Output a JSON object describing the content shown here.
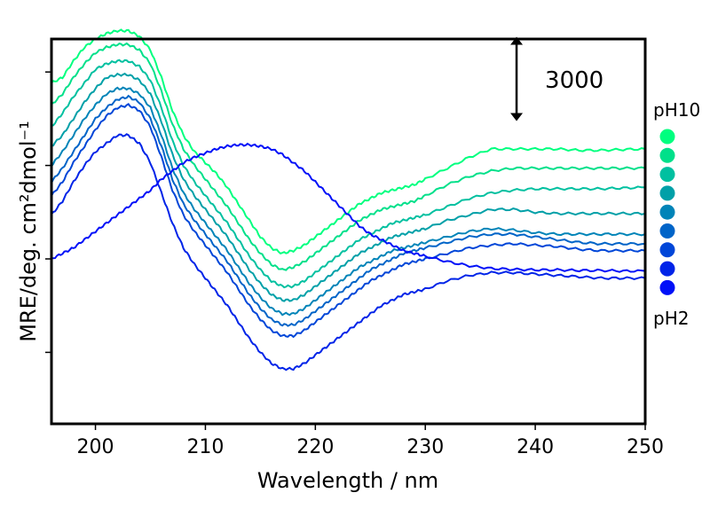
{
  "chart_data": {
    "type": "line",
    "xlabel": "Wavelength / nm",
    "ylabel": "MRE/deg. cm²dmol⁻¹",
    "xlim": [
      196,
      250
    ],
    "ylim": [
      -12600,
      1400
    ],
    "x_ticks": [
      200,
      210,
      220,
      230,
      240,
      250
    ],
    "y_ticks": [
      -10000,
      -6600,
      -3200,
      200
    ],
    "y_tick_labels_shown": false,
    "grid": false,
    "scale_bar": {
      "label": "3000",
      "value": 3000,
      "x": 238.3
    },
    "ph_label_top": "pH10",
    "ph_label_bottom": "pH2",
    "legend_colors": [
      "#00ff7f",
      "#00e08a",
      "#00c0a0",
      "#00a0a8",
      "#0084b8",
      "#0064c8",
      "#0046d8",
      "#0024e8",
      "#0010f8"
    ],
    "x_grid": [
      196,
      197,
      198,
      199,
      200,
      201,
      202,
      203,
      204,
      205,
      206,
      207,
      208,
      209,
      210,
      211,
      212,
      213,
      214,
      215,
      216,
      217,
      218,
      219,
      220,
      221,
      222,
      223,
      224,
      225,
      226,
      227,
      228,
      229,
      230,
      232,
      234,
      236,
      238,
      240,
      242,
      244,
      246,
      248,
      250
    ],
    "series": [
      {
        "color": "#00ff7f",
        "values": [
          -200,
          0,
          600,
          1100,
          1400,
          1600,
          1700,
          1700,
          1500,
          1000,
          0,
          -1200,
          -2100,
          -2700,
          -3100,
          -3500,
          -4000,
          -4600,
          -5200,
          -5800,
          -6200,
          -6400,
          -6300,
          -6100,
          -5800,
          -5500,
          -5200,
          -4900,
          -4600,
          -4400,
          -4200,
          -4100,
          -4000,
          -3900,
          -3700,
          -3300,
          -2900,
          -2600,
          -2600,
          -2600,
          -2600,
          -2650,
          -2650,
          -2620,
          -2600
        ]
      },
      {
        "color": "#00e08a",
        "values": [
          -1000,
          -600,
          0,
          500,
          900,
          1100,
          1200,
          1200,
          1000,
          500,
          -500,
          -1700,
          -2600,
          -3200,
          -3700,
          -4200,
          -4700,
          -5300,
          -5900,
          -6400,
          -6800,
          -7000,
          -6900,
          -6700,
          -6400,
          -6100,
          -5800,
          -5500,
          -5200,
          -5000,
          -4800,
          -4700,
          -4600,
          -4500,
          -4300,
          -3900,
          -3600,
          -3400,
          -3300,
          -3300,
          -3300,
          -3300,
          -3300,
          -3300,
          -3300
        ]
      },
      {
        "color": "#00c0a0",
        "values": [
          -1800,
          -1300,
          -700,
          -200,
          300,
          500,
          600,
          600,
          400,
          -100,
          -1100,
          -2300,
          -3200,
          -3800,
          -4300,
          -4800,
          -5300,
          -5900,
          -6500,
          -7000,
          -7400,
          -7600,
          -7600,
          -7400,
          -7100,
          -6800,
          -6500,
          -6200,
          -5900,
          -5700,
          -5500,
          -5300,
          -5200,
          -5100,
          -5000,
          -4700,
          -4400,
          -4200,
          -4100,
          -4050,
          -4050,
          -4050,
          -4050,
          -4020,
          -4000
        ]
      },
      {
        "color": "#00a0a8",
        "values": [
          -2500,
          -2100,
          -1500,
          -900,
          -400,
          0,
          100,
          100,
          -100,
          -600,
          -1600,
          -2800,
          -3700,
          -4300,
          -4800,
          -5300,
          -5800,
          -6400,
          -7000,
          -7500,
          -7900,
          -8100,
          -8100,
          -7900,
          -7600,
          -7300,
          -7000,
          -6700,
          -6400,
          -6200,
          -6000,
          -5800,
          -5700,
          -5600,
          -5500,
          -5200,
          -5000,
          -4800,
          -4800,
          -4900,
          -4950,
          -4950,
          -4950,
          -4950,
          -4950
        ]
      },
      {
        "color": "#0084b8",
        "values": [
          -3200,
          -2700,
          -2100,
          -1500,
          -1000,
          -600,
          -400,
          -400,
          -600,
          -1100,
          -2100,
          -3300,
          -4200,
          -4800,
          -5300,
          -5800,
          -6300,
          -6900,
          -7500,
          -8000,
          -8400,
          -8600,
          -8600,
          -8400,
          -8100,
          -7800,
          -7500,
          -7200,
          -6900,
          -6700,
          -6500,
          -6300,
          -6200,
          -6100,
          -6000,
          -5800,
          -5600,
          -5500,
          -5550,
          -5650,
          -5700,
          -5700,
          -5700,
          -5700,
          -5700
        ]
      },
      {
        "color": "#0064c8",
        "values": [
          -3800,
          -3300,
          -2700,
          -2100,
          -1500,
          -1100,
          -800,
          -700,
          -900,
          -1500,
          -2500,
          -3700,
          -4600,
          -5200,
          -5700,
          -6200,
          -6700,
          -7300,
          -7900,
          -8400,
          -8800,
          -9000,
          -9000,
          -8800,
          -8500,
          -8200,
          -7900,
          -7600,
          -7300,
          -7000,
          -6800,
          -6600,
          -6400,
          -6300,
          -6200,
          -6000,
          -5800,
          -5700,
          -5700,
          -5800,
          -5900,
          -6000,
          -6050,
          -6050,
          -6050
        ]
      },
      {
        "color": "#0046d8",
        "values": [
          -4300,
          -3800,
          -3100,
          -2500,
          -1900,
          -1400,
          -1100,
          -1000,
          -1200,
          -1800,
          -2900,
          -4100,
          -5000,
          -5600,
          -6100,
          -6600,
          -7100,
          -7700,
          -8300,
          -8800,
          -9200,
          -9400,
          -9400,
          -9200,
          -8900,
          -8600,
          -8300,
          -8000,
          -7700,
          -7400,
          -7200,
          -7000,
          -6800,
          -6700,
          -6600,
          -6400,
          -6200,
          -6100,
          -6050,
          -6100,
          -6150,
          -6250,
          -6300,
          -6300,
          -6300
        ]
      },
      {
        "color": "#0024e8",
        "values": [
          -5000,
          -4500,
          -3800,
          -3200,
          -2700,
          -2400,
          -2100,
          -2100,
          -2400,
          -3100,
          -4200,
          -5300,
          -6200,
          -6800,
          -7300,
          -7800,
          -8300,
          -8900,
          -9500,
          -10000,
          -10400,
          -10600,
          -10600,
          -10400,
          -10100,
          -9800,
          -9500,
          -9200,
          -8900,
          -8600,
          -8300,
          -8100,
          -7900,
          -7800,
          -7700,
          -7400,
          -7200,
          -7100,
          -7100,
          -7150,
          -7200,
          -7250,
          -7300,
          -7300,
          -7300
        ]
      },
      {
        "color": "#0010f8",
        "values": [
          -6600,
          -6400,
          -6200,
          -5900,
          -5600,
          -5300,
          -5000,
          -4700,
          -4400,
          -4100,
          -3700,
          -3400,
          -3100,
          -2900,
          -2750,
          -2600,
          -2500,
          -2450,
          -2450,
          -2500,
          -2600,
          -2800,
          -3100,
          -3400,
          -3800,
          -4200,
          -4600,
          -5000,
          -5400,
          -5700,
          -5900,
          -6100,
          -6300,
          -6400,
          -6500,
          -6700,
          -6850,
          -6950,
          -6980,
          -7000,
          -7000,
          -7020,
          -7020,
          -7040,
          -7040
        ]
      }
    ]
  }
}
